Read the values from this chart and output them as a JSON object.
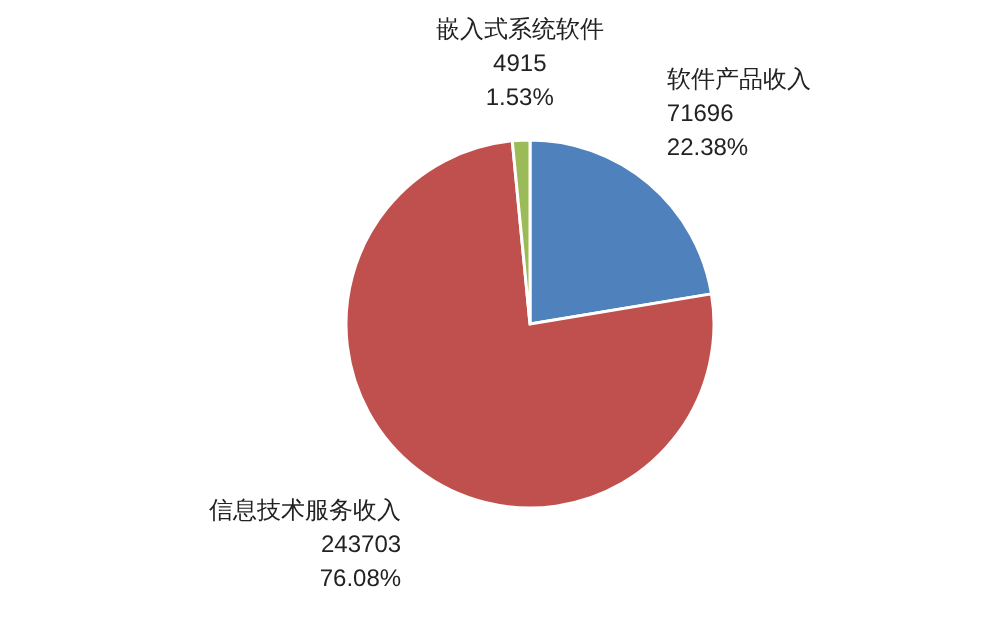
{
  "chart_data": {
    "type": "pie",
    "categories": [
      "软件产品收入",
      "信息技术服务收入",
      "嵌入式系统软件"
    ],
    "values": [
      71696,
      243703,
      4915
    ],
    "value_labels": [
      "71696\n22.38%",
      "243703\n76.08%",
      "4915\n1.53%"
    ],
    "colors": [
      "#4f81bd",
      "#c0504d",
      "#9bbb59"
    ]
  }
}
